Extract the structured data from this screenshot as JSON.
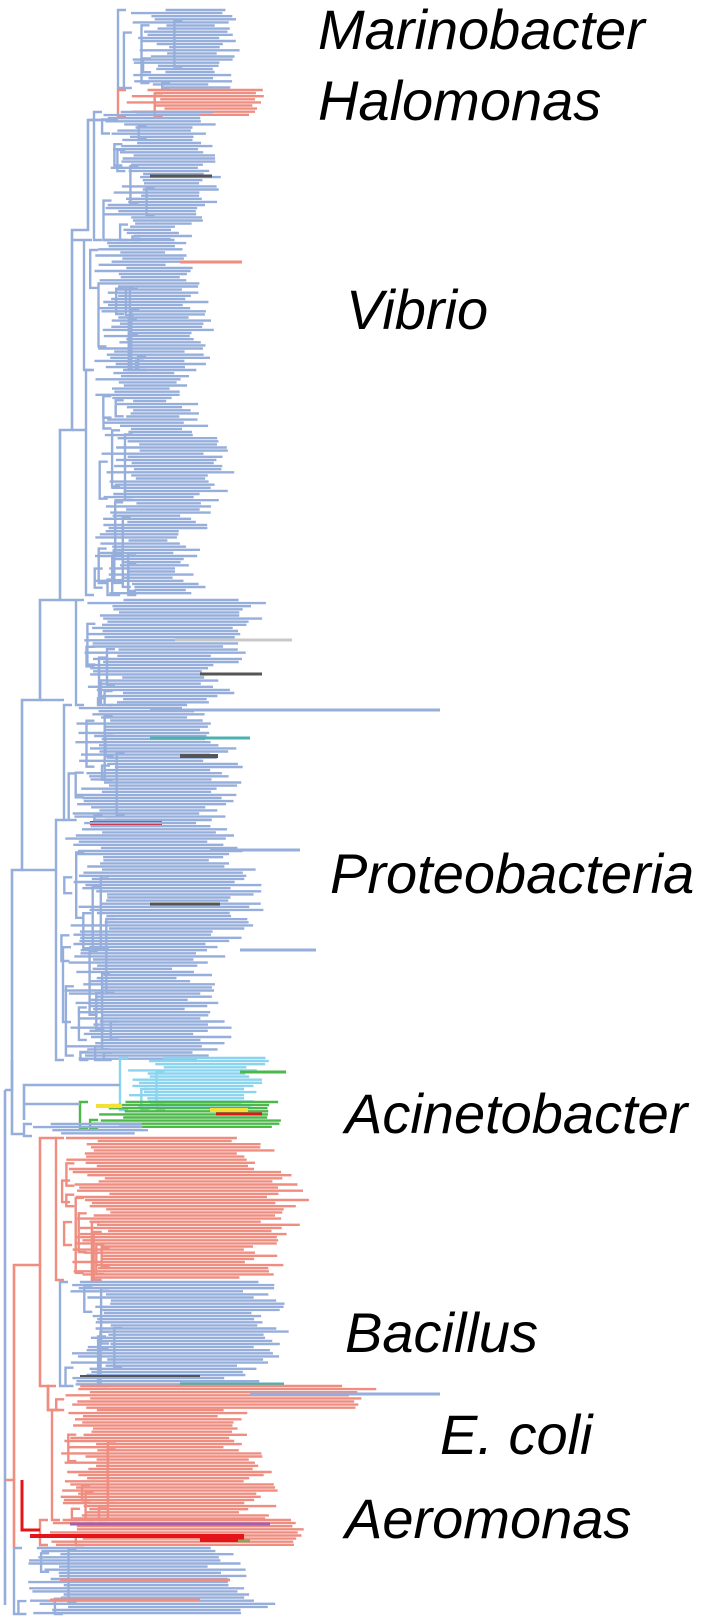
{
  "labels": {
    "marinobacter": "Marinobacter",
    "halomonas": "Halomonas",
    "vibrio": "Vibrio",
    "proteobacteria": "Proteobacteria",
    "acinetobacter": "Acinetobacter",
    "bacillus": "Bacillus",
    "ecoli": "E. coli",
    "aeromonas": "Aeromonas"
  },
  "colors": {
    "blue": "#96aedb",
    "salmon": "#ef8e80",
    "lightblue": "#8ad4f0",
    "green": "#4cb84a",
    "yellow": "#f4e033",
    "red": "#e4141a",
    "dark_gray": "#555555",
    "light_gray": "#c8c8c8",
    "teal": "#4fb0b0",
    "purple": "#a05fb8",
    "olive": "#98a060"
  }
}
